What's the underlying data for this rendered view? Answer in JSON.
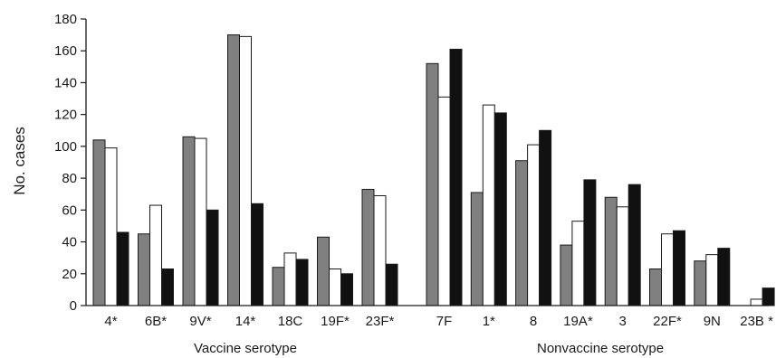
{
  "chart_data": {
    "type": "bar",
    "ylabel": "No.  cases",
    "ylim": [
      0,
      180
    ],
    "yticks": [
      0,
      20,
      40,
      60,
      80,
      100,
      120,
      140,
      160,
      180
    ],
    "grid": false,
    "legend": "none",
    "groups": [
      {
        "label": "Vaccine serotype",
        "categories": [
          "4*",
          "6B*",
          "9V*",
          "14*",
          "18C",
          "19F*",
          "23F*"
        ],
        "series": [
          {
            "fill": "#808080",
            "values": [
              104,
              45,
              106,
              170,
              24,
              43,
              73
            ]
          },
          {
            "fill": "#ffffff",
            "values": [
              99,
              63,
              105,
              169,
              33,
              23,
              69
            ]
          },
          {
            "fill": "#111111",
            "values": [
              46,
              23,
              60,
              64,
              29,
              20,
              26
            ]
          }
        ]
      },
      {
        "label": "Nonvaccine serotype",
        "categories": [
          "7F",
          "1*",
          "8",
          "19A*",
          "3",
          "22F*",
          "9N",
          "23B *"
        ],
        "series": [
          {
            "fill": "#808080",
            "values": [
              152,
              71,
              91,
              38,
              68,
              23,
              28,
              0
            ]
          },
          {
            "fill": "#ffffff",
            "values": [
              131,
              126,
              101,
              53,
              62,
              45,
              32,
              4
            ]
          },
          {
            "fill": "#111111",
            "values": [
              161,
              121,
              110,
              79,
              76,
              47,
              36,
              11
            ]
          }
        ]
      }
    ]
  }
}
